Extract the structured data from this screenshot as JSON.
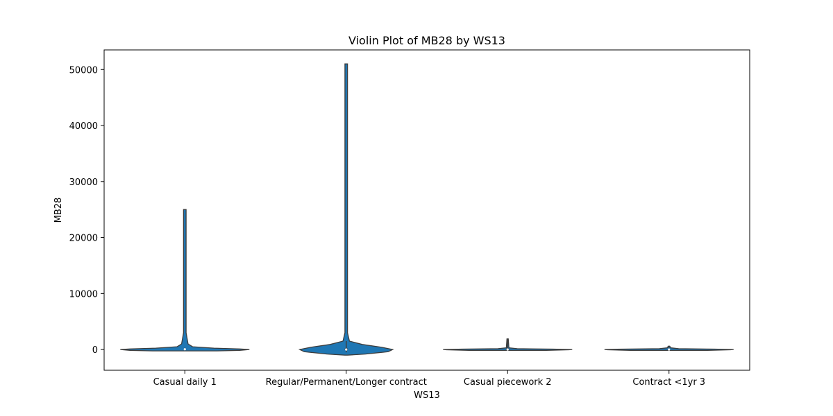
{
  "chart_data": {
    "type": "violin",
    "title": "Violin Plot of MB28 by WS13",
    "xlabel": "WS13",
    "ylabel": "MB28",
    "ylim": [
      -3700,
      53500
    ],
    "yticks": [
      0,
      10000,
      20000,
      30000,
      40000,
      50000
    ],
    "grid": false,
    "fill_color": "#1f77b4",
    "edge_color": "#3d3d3d",
    "categories": [
      "Casual daily 1",
      "Regular/Permanent/Longer contract",
      "Casual piecework 2",
      "Contract <1yr 3"
    ],
    "violins": [
      {
        "category": "Casual daily 1",
        "min": -200,
        "max": 25000,
        "whisker_low": 0,
        "whisker_high": 300,
        "median": 50,
        "profile": [
          [
            -250,
            0.5
          ],
          [
            -150,
            0.85
          ],
          [
            0,
            1.0
          ],
          [
            100,
            0.85
          ],
          [
            250,
            0.45
          ],
          [
            500,
            0.12
          ],
          [
            1000,
            0.05
          ],
          [
            3000,
            0.02
          ],
          [
            25000,
            0.02
          ]
        ]
      },
      {
        "category": "Regular/Permanent/Longer contract",
        "min": -1000,
        "max": 51000,
        "whisker_low": -500,
        "whisker_high": 1500,
        "median": 0,
        "profile": [
          [
            -1000,
            0.02
          ],
          [
            -800,
            0.3
          ],
          [
            -400,
            0.65
          ],
          [
            0,
            0.72
          ],
          [
            400,
            0.55
          ],
          [
            900,
            0.25
          ],
          [
            1500,
            0.05
          ],
          [
            3000,
            0.02
          ],
          [
            51000,
            0.02
          ]
        ]
      },
      {
        "category": "Casual piecework 2",
        "min": -150,
        "max": 1900,
        "whisker_low": 0,
        "whisker_high": 1850,
        "median": 0,
        "profile": [
          [
            -150,
            0.6
          ],
          [
            -50,
            0.95
          ],
          [
            0,
            1.0
          ],
          [
            80,
            0.7
          ],
          [
            150,
            0.15
          ],
          [
            300,
            0.02
          ],
          [
            1900,
            0.01
          ]
        ]
      },
      {
        "category": "Contract <1yr 3",
        "min": -150,
        "max": 600,
        "whisker_low": 0,
        "whisker_high": 550,
        "median": 0,
        "profile": [
          [
            -150,
            0.6
          ],
          [
            -50,
            0.95
          ],
          [
            0,
            1.0
          ],
          [
            80,
            0.7
          ],
          [
            150,
            0.15
          ],
          [
            300,
            0.03
          ],
          [
            600,
            0.01
          ]
        ]
      }
    ]
  }
}
